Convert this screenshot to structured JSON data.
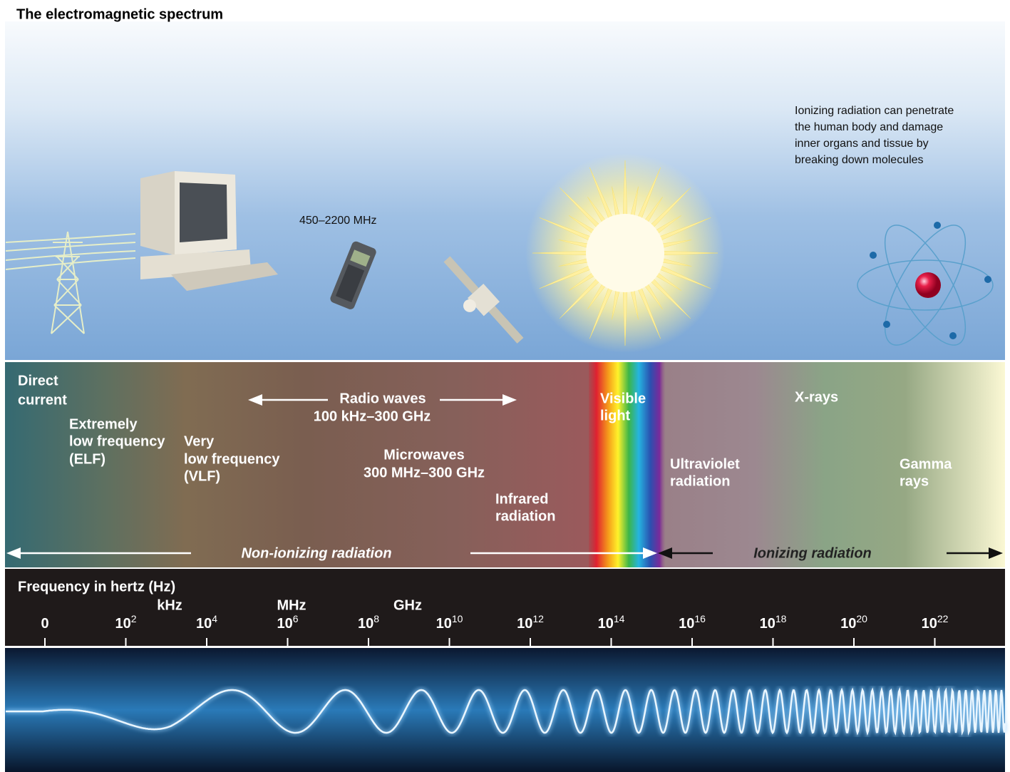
{
  "title": "The electromagnetic spectrum",
  "note": [
    "Ionizing radiation can penetrate",
    "the human body and damage",
    "inner organs and tissue by",
    "breaking down molecules"
  ],
  "phone_label": "450–2200 MHz",
  "bands": {
    "direct_current": [
      "Direct",
      "current"
    ],
    "elf": [
      "Extremely",
      "low frequency",
      "(ELF)"
    ],
    "vlf": [
      "Very",
      "low frequency",
      "(VLF)"
    ],
    "radio": [
      "Radio waves",
      "100 kHz–300 GHz"
    ],
    "microwaves": [
      "Microwaves",
      "300 MHz–300 GHz"
    ],
    "infrared": [
      "Infrared",
      "radiation"
    ],
    "visible": [
      "Visible",
      "light"
    ],
    "ultraviolet": [
      "Ultraviolet",
      "radiation"
    ],
    "xrays": [
      "X-rays"
    ],
    "gamma": [
      "Gamma",
      "rays"
    ]
  },
  "non_ionizing": "Non-ionizing radiation",
  "ionizing": "Ionizing radiation",
  "axis": {
    "title": "Frequency in hertz (Hz)",
    "units": [
      "kHz",
      "MHz",
      "GHz"
    ],
    "ticks": [
      {
        "base": "0"
      },
      {
        "base": "10",
        "exponent": "2"
      },
      {
        "base": "10",
        "exponent": "4"
      },
      {
        "base": "10",
        "exponent": "6"
      },
      {
        "base": "10",
        "exponent": "8"
      },
      {
        "base": "10",
        "exponent": "10"
      },
      {
        "base": "10",
        "exponent": "12"
      },
      {
        "base": "10",
        "exponent": "14"
      },
      {
        "base": "10",
        "exponent": "16"
      },
      {
        "base": "10",
        "exponent": "18"
      },
      {
        "base": "10",
        "exponent": "20"
      },
      {
        "base": "10",
        "exponent": "22"
      }
    ]
  }
}
